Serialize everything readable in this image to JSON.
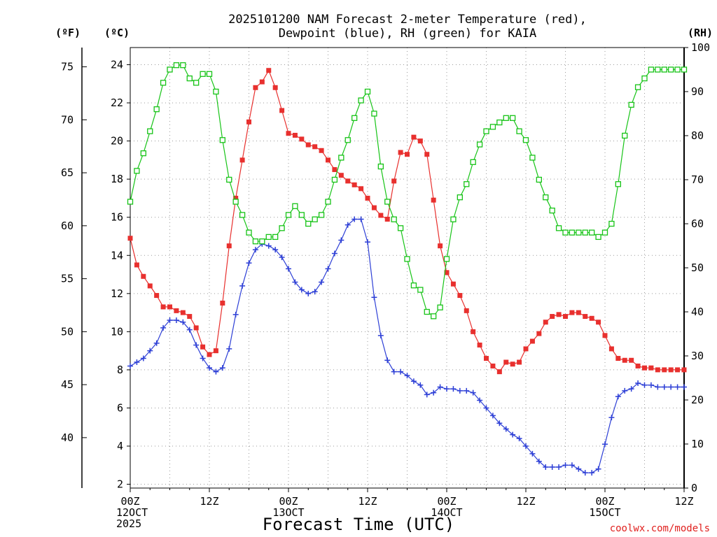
{
  "chart_data": {
    "type": "line",
    "title": [
      "2025101200 NAM Forecast 2-meter Temperature (red),",
      "Dewpoint (blue), RH (green) for KAIA"
    ],
    "xlabel": "Forecast Time (UTC)",
    "credit": "coolwx.com/models",
    "units": {
      "fahrenheit": "(ºF)",
      "celsius": "(ºC)",
      "rh": "(RH)"
    },
    "x_ticks": [
      {
        "hour": 0,
        "lines": [
          "00Z",
          "12OCT",
          "2025"
        ]
      },
      {
        "hour": 12,
        "lines": [
          "12Z"
        ]
      },
      {
        "hour": 24,
        "lines": [
          "00Z",
          "13OCT"
        ]
      },
      {
        "hour": 36,
        "lines": [
          "12Z"
        ]
      },
      {
        "hour": 48,
        "lines": [
          "00Z",
          "14OCT"
        ]
      },
      {
        "hour": 60,
        "lines": [
          "12Z"
        ]
      },
      {
        "hour": 72,
        "lines": [
          "00Z",
          "15OCT"
        ]
      },
      {
        "hour": 84,
        "lines": [
          "12Z"
        ]
      }
    ],
    "x_range": [
      0,
      84
    ],
    "celsius_axis": {
      "range": [
        1.8,
        24.9
      ],
      "ticks": [
        2,
        4,
        6,
        8,
        10,
        12,
        14,
        16,
        18,
        20,
        22,
        24
      ]
    },
    "fahrenheit_axis": {
      "ticks": [
        40,
        45,
        50,
        55,
        60,
        65,
        70,
        75
      ]
    },
    "rh_axis": {
      "range": [
        0,
        100
      ],
      "ticks": [
        0,
        10,
        20,
        30,
        40,
        50,
        60,
        70,
        80,
        90,
        100
      ]
    },
    "series": [
      {
        "name": "2-meter Temperature",
        "unit": "°C",
        "axis": "celsius",
        "color": "#e8302e",
        "marker": "filled-square",
        "x": [
          0,
          1,
          2,
          3,
          4,
          5,
          6,
          7,
          8,
          9,
          10,
          11,
          12,
          13,
          14,
          15,
          16,
          17,
          18,
          19,
          20,
          21,
          22,
          23,
          24,
          25,
          26,
          27,
          28,
          29,
          30,
          31,
          32,
          33,
          34,
          35,
          36,
          37,
          38,
          39,
          40,
          41,
          42,
          43,
          44,
          45,
          46,
          47,
          48,
          49,
          50,
          51,
          52,
          53,
          54,
          55,
          56,
          57,
          58,
          59,
          60,
          61,
          62,
          63,
          64,
          65,
          66,
          67,
          68,
          69,
          70,
          71,
          72,
          73,
          74,
          75,
          76,
          77,
          78,
          79,
          80,
          81,
          82,
          83,
          84
        ],
        "values": [
          14.9,
          13.5,
          12.9,
          12.4,
          11.9,
          11.3,
          11.3,
          11.1,
          11.0,
          10.8,
          10.2,
          9.2,
          8.8,
          9.0,
          11.5,
          14.5,
          17.0,
          19.0,
          21.0,
          22.8,
          23.1,
          23.7,
          22.8,
          21.6,
          20.4,
          20.3,
          20.1,
          19.8,
          19.7,
          19.5,
          19.0,
          18.5,
          18.2,
          17.9,
          17.7,
          17.5,
          17.0,
          16.5,
          16.1,
          15.9,
          17.9,
          19.4,
          19.3,
          20.2,
          20.0,
          19.3,
          16.9,
          14.5,
          13.1,
          12.5,
          11.9,
          11.1,
          10.0,
          9.3,
          8.6,
          8.2,
          7.9,
          8.4,
          8.3,
          8.4,
          9.1,
          9.5,
          9.9,
          10.5,
          10.8,
          10.9,
          10.8,
          11.0,
          11.0,
          10.8,
          10.7,
          10.5,
          9.8,
          9.1,
          8.6,
          8.5,
          8.5,
          8.2,
          8.1,
          8.1,
          8.0,
          8.0,
          8.0,
          8.0,
          8.0
        ]
      },
      {
        "name": "Dewpoint",
        "unit": "°C",
        "axis": "celsius",
        "color": "#2d3fd6",
        "marker": "plus",
        "x": [
          0,
          1,
          2,
          3,
          4,
          5,
          6,
          7,
          8,
          9,
          10,
          11,
          12,
          13,
          14,
          15,
          16,
          17,
          18,
          19,
          20,
          21,
          22,
          23,
          24,
          25,
          26,
          27,
          28,
          29,
          30,
          31,
          32,
          33,
          34,
          35,
          36,
          37,
          38,
          39,
          40,
          41,
          42,
          43,
          44,
          45,
          46,
          47,
          48,
          49,
          50,
          51,
          52,
          53,
          54,
          55,
          56,
          57,
          58,
          59,
          60,
          61,
          62,
          63,
          64,
          65,
          66,
          67,
          68,
          69,
          70,
          71,
          72,
          73,
          74,
          75,
          76,
          77,
          78,
          79,
          80,
          81,
          82,
          83,
          84
        ],
        "values": [
          8.2,
          8.4,
          8.6,
          9.0,
          9.4,
          10.2,
          10.6,
          10.6,
          10.5,
          10.1,
          9.3,
          8.6,
          8.1,
          7.9,
          8.1,
          9.1,
          10.9,
          12.4,
          13.6,
          14.3,
          14.6,
          14.5,
          14.3,
          13.9,
          13.3,
          12.6,
          12.2,
          12.0,
          12.1,
          12.6,
          13.3,
          14.1,
          14.8,
          15.6,
          15.9,
          15.9,
          14.7,
          11.8,
          9.8,
          8.5,
          7.9,
          7.9,
          7.7,
          7.4,
          7.2,
          6.7,
          6.8,
          7.1,
          7.0,
          7.0,
          6.9,
          6.9,
          6.8,
          6.4,
          6.0,
          5.6,
          5.2,
          4.9,
          4.6,
          4.4,
          4.0,
          3.6,
          3.2,
          2.9,
          2.9,
          2.9,
          3.0,
          3.0,
          2.8,
          2.6,
          2.6,
          2.8,
          4.1,
          5.5,
          6.6,
          6.9,
          7.0,
          7.3,
          7.2,
          7.2,
          7.1,
          7.1,
          7.1,
          7.1,
          7.1
        ]
      },
      {
        "name": "RH",
        "unit": "%",
        "axis": "rh",
        "color": "#17c417",
        "marker": "open-square",
        "x": [
          0,
          1,
          2,
          3,
          4,
          5,
          6,
          7,
          8,
          9,
          10,
          11,
          12,
          13,
          14,
          15,
          16,
          17,
          18,
          19,
          20,
          21,
          22,
          23,
          24,
          25,
          26,
          27,
          28,
          29,
          30,
          31,
          32,
          33,
          34,
          35,
          36,
          37,
          38,
          39,
          40,
          41,
          42,
          43,
          44,
          45,
          46,
          47,
          48,
          49,
          50,
          51,
          52,
          53,
          54,
          55,
          56,
          57,
          58,
          59,
          60,
          61,
          62,
          63,
          64,
          65,
          66,
          67,
          68,
          69,
          70,
          71,
          72,
          73,
          74,
          75,
          76,
          77,
          78,
          79,
          80,
          81,
          82,
          83,
          84
        ],
        "values": [
          65,
          72,
          76,
          81,
          86,
          92,
          95,
          96,
          96,
          93,
          92,
          94,
          94,
          90,
          79,
          70,
          65,
          62,
          58,
          56,
          56,
          57,
          57,
          59,
          62,
          64,
          62,
          60,
          61,
          62,
          65,
          70,
          75,
          79,
          84,
          88,
          90,
          85,
          73,
          65,
          61,
          59,
          52,
          46,
          45,
          40,
          39,
          41,
          52,
          61,
          66,
          69,
          74,
          78,
          81,
          82,
          83,
          84,
          84,
          81,
          79,
          75,
          70,
          66,
          63,
          59,
          58,
          58,
          58,
          58,
          58,
          57,
          58,
          60,
          69,
          80,
          87,
          91,
          93,
          95,
          95,
          95,
          95,
          95,
          95
        ]
      }
    ],
    "grid": true
  }
}
